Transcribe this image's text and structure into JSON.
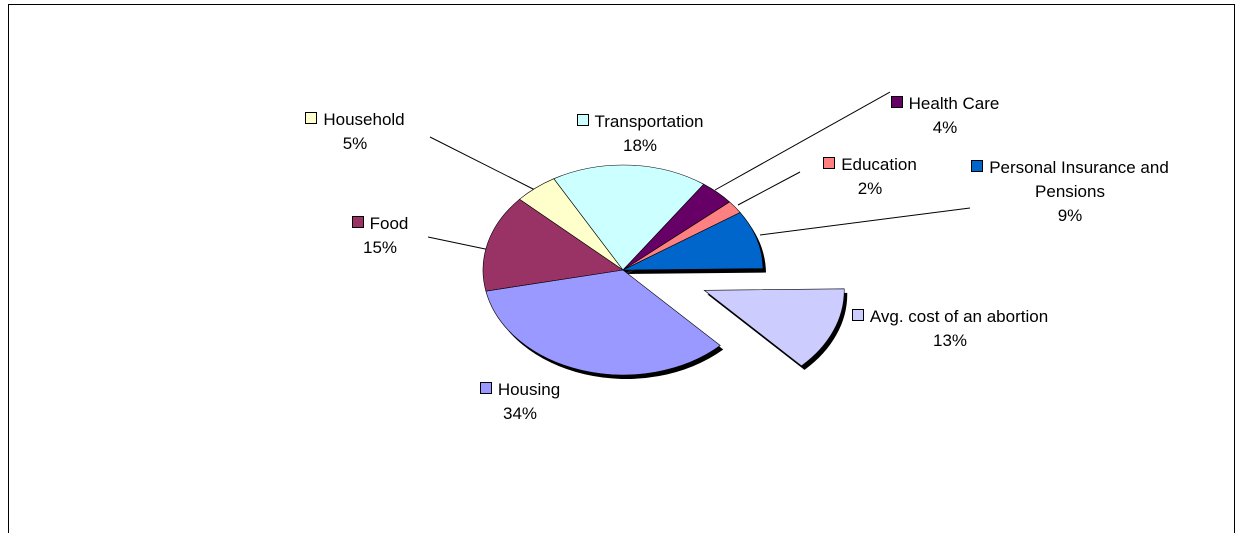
{
  "chart_data": {
    "type": "pie",
    "categories": [
      "Housing",
      "Food",
      "Household",
      "Transportation",
      "Health Care",
      "Education",
      "Personal Insurance and Pensions",
      "Avg. cost of an abortion"
    ],
    "values": [
      34,
      15,
      5,
      18,
      4,
      2,
      9,
      13
    ],
    "value_labels": [
      "34%",
      "15%",
      "5%",
      "18%",
      "4%",
      "2%",
      "9%",
      "13%"
    ],
    "colors": [
      "#9999ff",
      "#993366",
      "#ffffcc",
      "#ccffff",
      "#660066",
      "#ff8080",
      "#0066cc",
      "#ccccff"
    ],
    "exploded": [
      7
    ]
  }
}
